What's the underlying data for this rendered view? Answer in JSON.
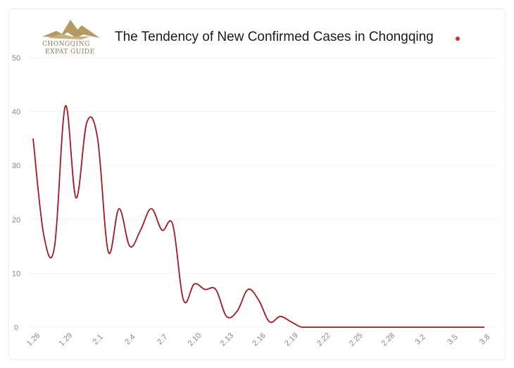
{
  "logo": {
    "line1": "CHONGQING",
    "line2": "EXPAT GUIDE"
  },
  "chart_data": {
    "type": "line",
    "title": "The Tendency of New Confirmed Cases in Chongqing",
    "xlabel": "",
    "ylabel": "",
    "ylim": [
      0,
      50
    ],
    "yticks": [
      0,
      10,
      20,
      30,
      40,
      50
    ],
    "x_tick_labels": [
      "1.26",
      "1.29",
      "2.1",
      "2.4",
      "2.7",
      "2.10",
      "2.13",
      "2.16",
      "2.19",
      "2.22",
      "2.25",
      "2.28",
      "3.2",
      "3.5",
      "3.8"
    ],
    "grid": true,
    "legend": "none",
    "series": [
      {
        "name": "New confirmed cases",
        "color": "#a11a1e",
        "x": [
          "1.26",
          "1.27",
          "1.28",
          "1.29",
          "1.30",
          "1.31",
          "2.1",
          "2.2",
          "2.3",
          "2.4",
          "2.5",
          "2.6",
          "2.7",
          "2.8",
          "2.9",
          "2.10",
          "2.11",
          "2.12",
          "2.13",
          "2.14",
          "2.15",
          "2.16",
          "2.17",
          "2.18",
          "2.19",
          "2.20",
          "2.21",
          "2.22",
          "2.23",
          "2.24",
          "2.25",
          "2.26",
          "2.27",
          "2.28",
          "2.29",
          "3.1",
          "3.2",
          "3.3",
          "3.4",
          "3.5",
          "3.6",
          "3.7",
          "3.8"
        ],
        "values": [
          35,
          17,
          15,
          41,
          24,
          38,
          35,
          14,
          22,
          15,
          18,
          22,
          18,
          19,
          5,
          8,
          7,
          7,
          2,
          3,
          7,
          5,
          1,
          2,
          1,
          0,
          0,
          0,
          0,
          0,
          0,
          0,
          0,
          0,
          0,
          0,
          0,
          0,
          0,
          0,
          0,
          0,
          0
        ]
      }
    ]
  }
}
